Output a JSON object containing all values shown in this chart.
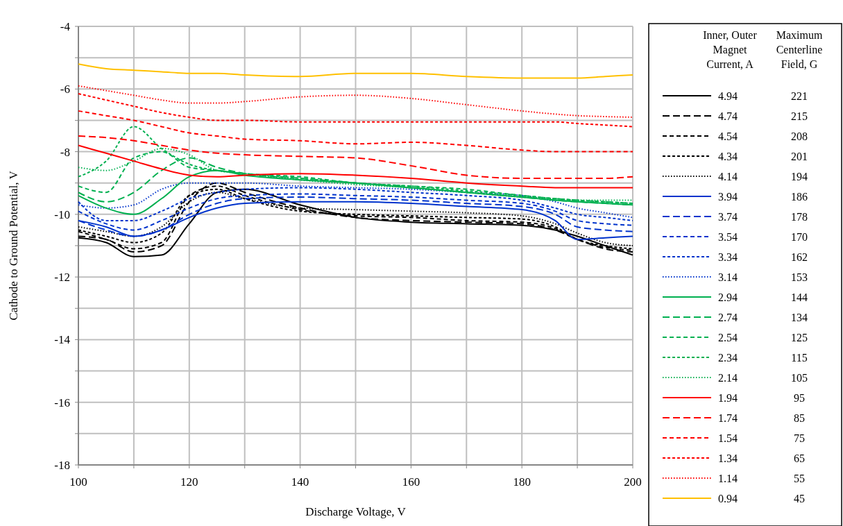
{
  "chart_data": {
    "type": "line",
    "xlabel": "Discharge Voltage, V",
    "ylabel": "Cathode to Ground Potential, V",
    "legend_title": "Inner, Outer Magnet Current, A",
    "legend": "right",
    "grid": true,
    "marker": "none",
    "xlim": [
      100,
      200
    ],
    "ylim": [
      -18,
      -4
    ],
    "xticks": [
      100,
      {
        "value": 110,
        "label": null
      },
      120,
      {
        "value": 130,
        "label": null
      },
      140,
      {
        "value": 150,
        "label": null
      },
      160,
      {
        "value": 170,
        "label": null
      },
      180,
      {
        "value": 190,
        "label": null
      },
      200
    ],
    "yticks": [
      -18,
      {
        "value": -17,
        "label": null
      },
      -16,
      {
        "value": -15,
        "label": null
      },
      -14,
      {
        "value": -13,
        "label": null
      },
      -12,
      {
        "value": -11,
        "label": null
      },
      -10,
      {
        "value": -9,
        "label": null
      },
      -8,
      {
        "value": -7,
        "label": null
      },
      -6,
      {
        "value": -5,
        "label": null
      },
      -4
    ],
    "x": [
      100,
      105,
      110,
      115,
      120,
      125,
      130,
      140,
      150,
      160,
      170,
      180,
      186,
      190,
      195,
      200
    ],
    "annotations": [
      "Maximum Centerline Field, G",
      "221",
      "215",
      "208",
      "201",
      "194",
      "186",
      "178",
      "170",
      "162",
      "153",
      "144",
      "134",
      "125",
      "115",
      "105",
      "95",
      "85",
      "75",
      "65",
      "55",
      "45"
    ],
    "series": [
      {
        "name": "4.94",
        "color": "#000000",
        "line_style": "solid",
        "values": [
          -10.75,
          -10.9,
          -11.35,
          -11.3,
          -10.3,
          -9.3,
          -9.2,
          -9.7,
          -10.1,
          -10.25,
          -10.3,
          -10.35,
          -10.5,
          -10.7,
          -11.0,
          -11.3
        ]
      },
      {
        "name": "4.74",
        "color": "#000000",
        "line_style": "dashed",
        "values": [
          -10.7,
          -10.8,
          -11.2,
          -11.0,
          -9.6,
          -9.0,
          -9.3,
          -9.8,
          -10.1,
          -10.2,
          -10.25,
          -10.3,
          -10.5,
          -10.8,
          -11.1,
          -11.2
        ]
      },
      {
        "name": "4.54",
        "color": "#000000",
        "line_style": "dashed",
        "values": [
          -10.55,
          -10.8,
          -11.1,
          -10.9,
          -9.4,
          -9.1,
          -9.4,
          -9.85,
          -10.05,
          -10.1,
          -10.2,
          -10.25,
          -10.45,
          -10.8,
          -11.05,
          -11.15
        ]
      },
      {
        "name": "4.34",
        "color": "#000000",
        "line_style": "dashed",
        "values": [
          -10.5,
          -10.7,
          -10.9,
          -10.6,
          -9.4,
          -9.2,
          -9.5,
          -9.9,
          -10.0,
          -10.05,
          -10.1,
          -10.15,
          -10.4,
          -10.8,
          -11.0,
          -11.1
        ]
      },
      {
        "name": "4.14",
        "color": "#000000",
        "line_style": "dotted",
        "values": [
          -10.4,
          -10.55,
          -10.7,
          -10.4,
          -9.6,
          -9.3,
          -9.5,
          -9.8,
          -9.85,
          -9.9,
          -9.95,
          -10.05,
          -10.3,
          -10.6,
          -10.9,
          -11.0
        ]
      },
      {
        "name": "3.94",
        "color": "#0033cc",
        "line_style": "solid",
        "values": [
          -10.2,
          -10.4,
          -10.7,
          -10.5,
          -10.1,
          -9.8,
          -9.65,
          -9.6,
          -9.6,
          -9.65,
          -9.75,
          -9.85,
          -10.2,
          -10.8,
          -10.75,
          -10.7
        ]
      },
      {
        "name": "3.74",
        "color": "#0033cc",
        "line_style": "dashed",
        "values": [
          -10.2,
          -10.5,
          -10.7,
          -10.5,
          -10.0,
          -9.65,
          -9.5,
          -9.45,
          -9.5,
          -9.55,
          -9.65,
          -9.75,
          -10.0,
          -10.4,
          -10.5,
          -10.55
        ]
      },
      {
        "name": "3.54",
        "color": "#0033cc",
        "line_style": "dashed",
        "values": [
          -9.9,
          -10.3,
          -10.5,
          -10.2,
          -9.8,
          -9.5,
          -9.4,
          -9.35,
          -9.4,
          -9.45,
          -9.55,
          -9.65,
          -9.9,
          -10.2,
          -10.3,
          -10.35
        ]
      },
      {
        "name": "3.34",
        "color": "#0033cc",
        "line_style": "dashed",
        "values": [
          -9.6,
          -10.2,
          -10.2,
          -9.9,
          -9.5,
          -9.3,
          -9.2,
          -9.15,
          -9.2,
          -9.3,
          -9.4,
          -9.55,
          -9.8,
          -10.0,
          -10.1,
          -10.2
        ]
      },
      {
        "name": "3.14",
        "color": "#0033cc",
        "line_style": "dotted",
        "values": [
          -9.7,
          -9.8,
          -9.7,
          -9.2,
          -9.0,
          -9.0,
          -9.0,
          -9.1,
          -9.15,
          -9.2,
          -9.3,
          -9.4,
          -9.6,
          -9.8,
          -9.95,
          -10.1
        ]
      },
      {
        "name": "2.94",
        "color": "#00b050",
        "line_style": "solid",
        "values": [
          -9.4,
          -9.8,
          -10.0,
          -9.5,
          -8.8,
          -8.6,
          -8.75,
          -8.9,
          -9.0,
          -9.15,
          -9.3,
          -9.45,
          -9.55,
          -9.6,
          -9.65,
          -9.7
        ]
      },
      {
        "name": "2.74",
        "color": "#00b050",
        "line_style": "dashed",
        "values": [
          -9.3,
          -9.6,
          -9.3,
          -8.6,
          -8.2,
          -8.5,
          -8.7,
          -8.85,
          -9.0,
          -9.15,
          -9.3,
          -9.45,
          -9.55,
          -9.6,
          -9.65,
          -9.7
        ]
      },
      {
        "name": "2.54",
        "color": "#00b050",
        "line_style": "dashed",
        "values": [
          -9.1,
          -9.3,
          -8.2,
          -8.0,
          -8.5,
          -8.6,
          -8.7,
          -8.8,
          -9.0,
          -9.1,
          -9.2,
          -9.4,
          -9.5,
          -9.55,
          -9.6,
          -9.65
        ]
      },
      {
        "name": "2.34",
        "color": "#00b050",
        "line_style": "dashed",
        "values": [
          -8.8,
          -8.3,
          -7.2,
          -7.9,
          -8.4,
          -8.6,
          -8.7,
          -8.85,
          -9.0,
          -9.1,
          -9.25,
          -9.4,
          -9.5,
          -9.55,
          -9.6,
          -9.65
        ]
      },
      {
        "name": "2.14",
        "color": "#00b050",
        "line_style": "dotted",
        "values": [
          -8.5,
          -8.6,
          -8.3,
          -7.9,
          -8.1,
          -8.6,
          -8.7,
          -8.9,
          -9.05,
          -9.15,
          -9.3,
          -9.45,
          -9.5,
          -9.55,
          -9.55,
          -9.55
        ]
      },
      {
        "name": "1.94",
        "color": "#ff0000",
        "line_style": "solid",
        "values": [
          -7.8,
          -8.05,
          -8.3,
          -8.55,
          -8.75,
          -8.8,
          -8.75,
          -8.7,
          -8.75,
          -8.85,
          -9.0,
          -9.1,
          -9.15,
          -9.15,
          -9.15,
          -9.15
        ]
      },
      {
        "name": "1.74",
        "color": "#ff0000",
        "line_style": "dashed",
        "values": [
          -7.5,
          -7.55,
          -7.65,
          -7.8,
          -7.95,
          -8.05,
          -8.1,
          -8.15,
          -8.2,
          -8.45,
          -8.75,
          -8.85,
          -8.85,
          -8.85,
          -8.85,
          -8.8
        ]
      },
      {
        "name": "1.54",
        "color": "#ff0000",
        "line_style": "dashed",
        "values": [
          -6.7,
          -6.85,
          -7.0,
          -7.2,
          -7.4,
          -7.5,
          -7.6,
          -7.65,
          -7.75,
          -7.7,
          -7.8,
          -7.95,
          -8.0,
          -8.0,
          -8.0,
          -8.0
        ]
      },
      {
        "name": "1.34",
        "color": "#ff0000",
        "line_style": "dashed",
        "values": [
          -6.15,
          -6.35,
          -6.55,
          -6.75,
          -6.9,
          -7.0,
          -7.0,
          -7.05,
          -7.05,
          -7.05,
          -7.05,
          -7.05,
          -7.05,
          -7.1,
          -7.15,
          -7.2
        ]
      },
      {
        "name": "1.14",
        "color": "#ff0000",
        "line_style": "dotted",
        "values": [
          -5.9,
          -6.05,
          -6.2,
          -6.35,
          -6.45,
          -6.45,
          -6.4,
          -6.25,
          -6.2,
          -6.3,
          -6.5,
          -6.7,
          -6.8,
          -6.85,
          -6.88,
          -6.9
        ]
      },
      {
        "name": "0.94",
        "color": "#ffc000",
        "line_style": "solid",
        "values": [
          -5.2,
          -5.35,
          -5.4,
          -5.45,
          -5.5,
          -5.5,
          -5.55,
          -5.6,
          -5.5,
          -5.5,
          -5.6,
          -5.65,
          -5.65,
          -5.65,
          -5.6,
          -5.55
        ]
      }
    ]
  }
}
